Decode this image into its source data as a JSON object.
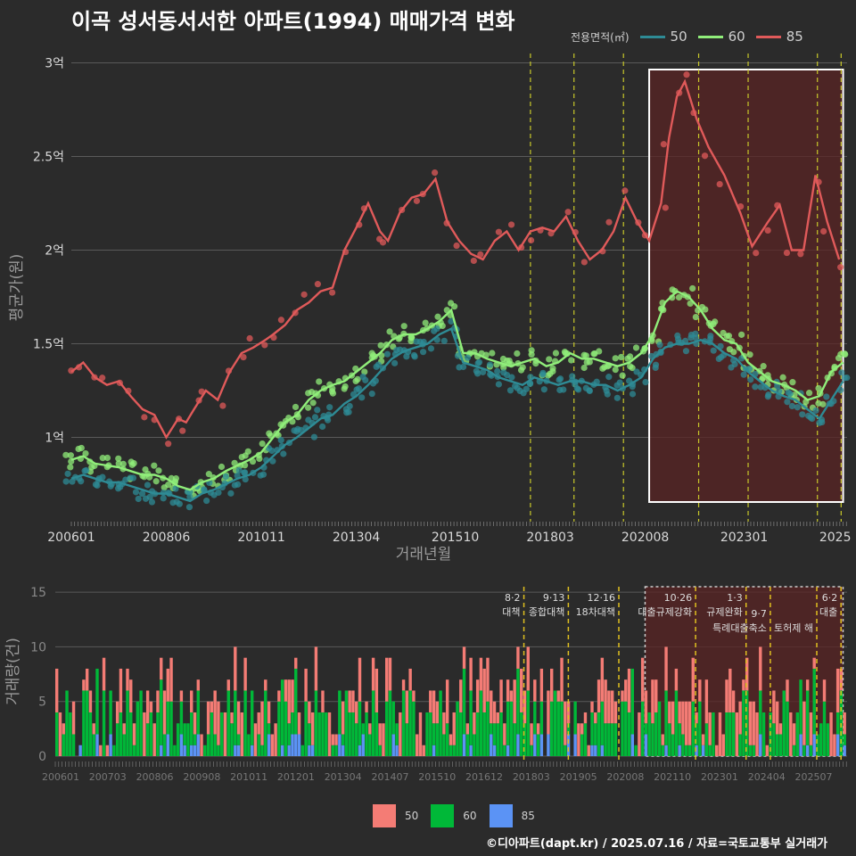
{
  "title": "이곡 성서동서서한 아파트(1994) 매매가격 변화",
  "legend": {
    "title": "전용면적(㎡)",
    "series": [
      {
        "name": "50",
        "color": "#2e8b95"
      },
      {
        "name": "60",
        "color": "#90ee7a"
      },
      {
        "name": "85",
        "color": "#e05a5a"
      }
    ]
  },
  "bar_legend": [
    {
      "name": "50",
      "color": "#f47c75"
    },
    {
      "name": "60",
      "color": "#00b838"
    },
    {
      "name": "85",
      "color": "#5b93f5"
    }
  ],
  "footer": "©디아파트(dapt.kr) / 2025.07.16 / 자료=국토교통부 실거래가",
  "chart_data": [
    {
      "type": "line",
      "xlabel": "거래년월",
      "ylabel": "평균가(원)",
      "x_ticks": [
        "200601",
        "200806",
        "201011",
        "201304",
        "201510",
        "201803",
        "202008",
        "202301",
        "2025"
      ],
      "y_ticks": [
        "1억",
        "1.5억",
        "2억",
        "2.5억",
        "3억"
      ],
      "y_tick_values": [
        1.0,
        1.5,
        2.0,
        2.5,
        3.0
      ],
      "ylim": [
        0.55,
        3.05
      ],
      "xlim": [
        2006.0,
        2025.6
      ],
      "policy_lines": [
        2017.6,
        2018.7,
        2019.95,
        2021.85,
        2023.1,
        2024.85,
        2025.45
      ],
      "highlight_range": [
        2020.6,
        2025.5
      ],
      "grid": true,
      "series": [
        {
          "name": "85",
          "x": [
            2006.0,
            2006.3,
            2006.6,
            2006.9,
            2007.2,
            2007.5,
            2007.8,
            2008.1,
            2008.4,
            2008.7,
            2008.9,
            2009.1,
            2009.4,
            2009.7,
            2010.0,
            2010.3,
            2010.6,
            2010.9,
            2011.1,
            2011.4,
            2011.7,
            2012.0,
            2012.3,
            2012.6,
            2012.9,
            2013.2,
            2013.5,
            2013.8,
            2014.0,
            2014.3,
            2014.6,
            2014.9,
            2015.2,
            2015.5,
            2015.8,
            2016.1,
            2016.4,
            2016.7,
            2017.0,
            2017.3,
            2017.6,
            2017.9,
            2018.2,
            2018.5,
            2018.8,
            2019.1,
            2019.4,
            2019.7,
            2020.0,
            2020.3,
            2020.6,
            2020.9,
            2021.1,
            2021.3,
            2021.5,
            2021.8,
            2022.1,
            2022.5,
            2022.9,
            2023.2,
            2023.6,
            2023.9,
            2024.2,
            2024.5,
            2024.8,
            2025.1,
            2025.4
          ],
          "y": [
            1.35,
            1.4,
            1.32,
            1.28,
            1.3,
            1.22,
            1.15,
            1.12,
            1.0,
            1.1,
            1.08,
            1.15,
            1.25,
            1.2,
            1.35,
            1.45,
            1.48,
            1.52,
            1.55,
            1.6,
            1.68,
            1.72,
            1.78,
            1.8,
            2.0,
            2.12,
            2.25,
            2.1,
            2.05,
            2.2,
            2.28,
            2.3,
            2.38,
            2.15,
            2.05,
            1.98,
            1.95,
            2.05,
            2.1,
            2.0,
            2.1,
            2.12,
            2.1,
            2.18,
            2.05,
            1.95,
            2.0,
            2.1,
            2.28,
            2.15,
            2.05,
            2.25,
            2.6,
            2.82,
            2.9,
            2.7,
            2.55,
            2.4,
            2.2,
            2.02,
            2.15,
            2.24,
            2.0,
            2.0,
            2.4,
            2.15,
            1.95
          ]
        },
        {
          "name": "60",
          "x": [
            2006.0,
            2006.3,
            2006.6,
            2006.9,
            2007.2,
            2007.5,
            2007.8,
            2008.1,
            2008.4,
            2008.7,
            2009.0,
            2009.3,
            2009.6,
            2009.9,
            2010.2,
            2010.5,
            2010.8,
            2011.1,
            2011.4,
            2011.7,
            2012.0,
            2012.3,
            2012.6,
            2012.9,
            2013.2,
            2013.5,
            2013.8,
            2014.1,
            2014.4,
            2014.7,
            2015.0,
            2015.3,
            2015.6,
            2015.9,
            2016.2,
            2016.5,
            2016.8,
            2017.1,
            2017.4,
            2017.7,
            2018.0,
            2018.3,
            2018.6,
            2018.9,
            2019.2,
            2019.5,
            2019.8,
            2020.1,
            2020.4,
            2020.7,
            2021.0,
            2021.3,
            2021.6,
            2021.9,
            2022.2,
            2022.5,
            2022.8,
            2023.1,
            2023.4,
            2023.7,
            2024.0,
            2024.3,
            2024.6,
            2024.9,
            2025.2,
            2025.5
          ],
          "y": [
            0.88,
            0.9,
            0.86,
            0.85,
            0.84,
            0.82,
            0.8,
            0.8,
            0.78,
            0.74,
            0.72,
            0.76,
            0.78,
            0.82,
            0.85,
            0.88,
            0.92,
            1.0,
            1.08,
            1.12,
            1.2,
            1.25,
            1.28,
            1.3,
            1.35,
            1.4,
            1.45,
            1.52,
            1.55,
            1.55,
            1.58,
            1.62,
            1.68,
            1.45,
            1.45,
            1.42,
            1.4,
            1.38,
            1.4,
            1.42,
            1.38,
            1.4,
            1.45,
            1.42,
            1.42,
            1.4,
            1.38,
            1.4,
            1.45,
            1.55,
            1.72,
            1.78,
            1.75,
            1.68,
            1.58,
            1.52,
            1.5,
            1.4,
            1.35,
            1.3,
            1.28,
            1.25,
            1.2,
            1.22,
            1.35,
            1.4
          ]
        },
        {
          "name": "50",
          "x": [
            2006.0,
            2006.3,
            2006.6,
            2006.9,
            2007.2,
            2007.5,
            2007.8,
            2008.1,
            2008.4,
            2008.7,
            2009.0,
            2009.3,
            2009.6,
            2009.9,
            2010.2,
            2010.5,
            2010.8,
            2011.1,
            2011.4,
            2011.7,
            2012.0,
            2012.3,
            2012.6,
            2012.9,
            2013.2,
            2013.5,
            2013.8,
            2014.1,
            2014.4,
            2014.7,
            2015.0,
            2015.3,
            2015.6,
            2015.9,
            2016.2,
            2016.5,
            2016.8,
            2017.1,
            2017.4,
            2017.7,
            2018.0,
            2018.3,
            2018.6,
            2018.9,
            2019.2,
            2019.5,
            2019.8,
            2020.1,
            2020.4,
            2020.7,
            2021.0,
            2021.3,
            2021.6,
            2021.9,
            2022.2,
            2022.5,
            2022.8,
            2023.1,
            2023.4,
            2023.7,
            2024.0,
            2024.3,
            2024.6,
            2024.9,
            2025.2,
            2025.5
          ],
          "y": [
            0.78,
            0.8,
            0.78,
            0.76,
            0.76,
            0.74,
            0.72,
            0.7,
            0.7,
            0.68,
            0.66,
            0.7,
            0.72,
            0.75,
            0.78,
            0.8,
            0.84,
            0.9,
            0.96,
            1.0,
            1.05,
            1.1,
            1.12,
            1.18,
            1.22,
            1.28,
            1.35,
            1.42,
            1.46,
            1.48,
            1.5,
            1.55,
            1.58,
            1.4,
            1.38,
            1.36,
            1.32,
            1.3,
            1.28,
            1.32,
            1.3,
            1.28,
            1.3,
            1.3,
            1.28,
            1.28,
            1.25,
            1.28,
            1.32,
            1.42,
            1.48,
            1.5,
            1.5,
            1.52,
            1.5,
            1.45,
            1.42,
            1.35,
            1.3,
            1.25,
            1.22,
            1.2,
            1.15,
            1.1,
            1.2,
            1.3
          ]
        }
      ]
    },
    {
      "type": "bar",
      "ylabel": "거래량(건)",
      "x_ticks": [
        "200601",
        "200703",
        "200806",
        "200908",
        "201011",
        "201201",
        "201304",
        "201407",
        "201510",
        "201612",
        "201803",
        "201905",
        "202008",
        "202110",
        "202301",
        "202404",
        "202507"
      ],
      "y_ticks": [
        0,
        5,
        10,
        15
      ],
      "ylim": [
        0,
        15.5
      ],
      "highlight_range": [
        2020.6,
        2025.5
      ],
      "policy_annotations": [
        {
          "date": "8·2",
          "label": "대책",
          "x": 2017.6
        },
        {
          "date": "9·13",
          "label": "종합대책",
          "x": 2018.7
        },
        {
          "date": "12·16",
          "label": "18차대책",
          "x": 2019.95
        },
        {
          "date": "10·26",
          "label": "대출규제강화",
          "x": 2021.85
        },
        {
          "date": "1·3",
          "label": "규제완화",
          "x": 2023.1
        },
        {
          "date": "9·7",
          "label": "특례대출축소",
          "x": 2023.7
        },
        {
          "date": "",
          "label": "토허제 해",
          "x": 2024.85
        },
        {
          "date": "6·2",
          "label": "대출",
          "x": 2025.45
        }
      ],
      "series": [
        {
          "name": "50",
          "values_note": "monthly counts"
        },
        {
          "name": "60",
          "values_note": "monthly counts"
        },
        {
          "name": "85",
          "values_note": "monthly counts"
        }
      ]
    }
  ]
}
